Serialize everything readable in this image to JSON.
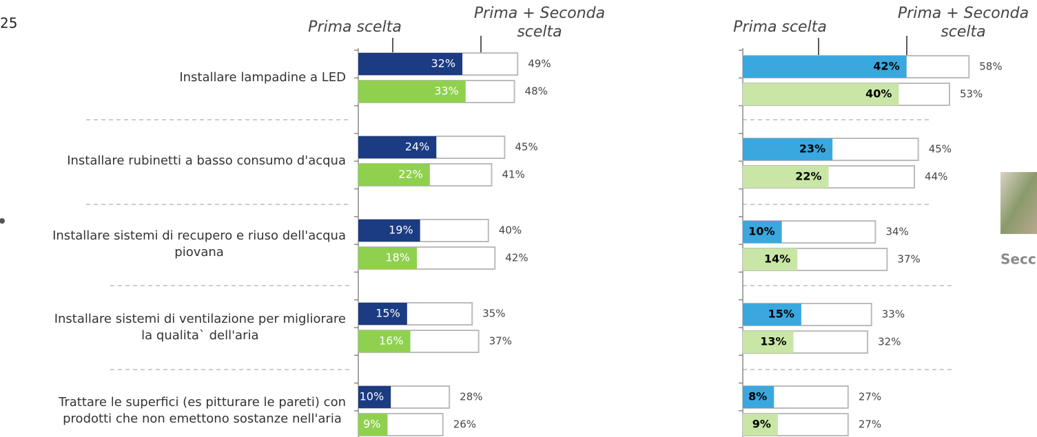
{
  "page_number": "25",
  "side_label": "Secc",
  "chart_data": [
    {
      "type": "bar",
      "annotations": {
        "first": "Prima scelta",
        "total": [
          "Prima + Seconda",
          "scelta"
        ]
      },
      "categories": [
        [
          "Installare lampadine a LED"
        ],
        [
          "Installare rubinetti a basso consumo d'acqua"
        ],
        [
          "Installare sistemi di recupero e riuso dell'acqua",
          "piovana"
        ],
        [
          "Installare sistemi di ventilazione per migliorare",
          "la qualita` dell'aria"
        ],
        [
          "Trattare le superfici (es pitturare le pareti) con",
          "prodotti che non emettono sostanze nell'aria"
        ]
      ],
      "xlim": [
        0,
        100
      ],
      "series": [
        {
          "color": "#1b3b82",
          "label_color": "#ffffff",
          "values": [
            32,
            24,
            19,
            15,
            10
          ],
          "value_labels": [
            "32%",
            "24%",
            "19%",
            "15%",
            "10%"
          ]
        },
        {
          "color": "#ffffff",
          "label_color": "#444444",
          "values": [
            49,
            45,
            40,
            35,
            28
          ],
          "value_labels": [
            "49%",
            "45%",
            "40%",
            "35%",
            "28%"
          ]
        },
        {
          "color": "#8fd14f",
          "label_color": "#ffffff",
          "values": [
            33,
            22,
            18,
            16,
            9
          ],
          "value_labels": [
            "33%",
            "22%",
            "18%",
            "16%",
            "9%"
          ]
        },
        {
          "color": "#ffffff",
          "label_color": "#444444",
          "values": [
            48,
            41,
            42,
            37,
            26
          ],
          "value_labels": [
            "48%",
            "41%",
            "42%",
            "37%",
            "26%"
          ]
        }
      ]
    },
    {
      "type": "bar",
      "annotations": {
        "first": "Prima scelta",
        "total": [
          "Prima + Seconda",
          "scelta"
        ]
      },
      "categories": [
        null,
        null,
        null,
        null,
        null
      ],
      "xlim": [
        0,
        100
      ],
      "series": [
        {
          "color": "#3aa8df",
          "label_color": "#000000",
          "values": [
            42,
            23,
            10,
            15,
            8
          ],
          "value_labels": [
            "42%",
            "23%",
            "10%",
            "15%",
            "8%"
          ]
        },
        {
          "color": "#ffffff",
          "label_color": "#444444",
          "values": [
            58,
            45,
            34,
            33,
            27
          ],
          "value_labels": [
            "58%",
            "45%",
            "34%",
            "33%",
            "27%"
          ]
        },
        {
          "color": "#c9e6a6",
          "label_color": "#000000",
          "values": [
            40,
            22,
            14,
            13,
            9
          ],
          "value_labels": [
            "40%",
            "22%",
            "14%",
            "13%",
            "9%"
          ]
        },
        {
          "color": "#ffffff",
          "label_color": "#444444",
          "values": [
            53,
            44,
            37,
            32,
            27
          ],
          "value_labels": [
            "53%",
            "44%",
            "37%",
            "32%",
            "27%"
          ]
        }
      ]
    }
  ]
}
